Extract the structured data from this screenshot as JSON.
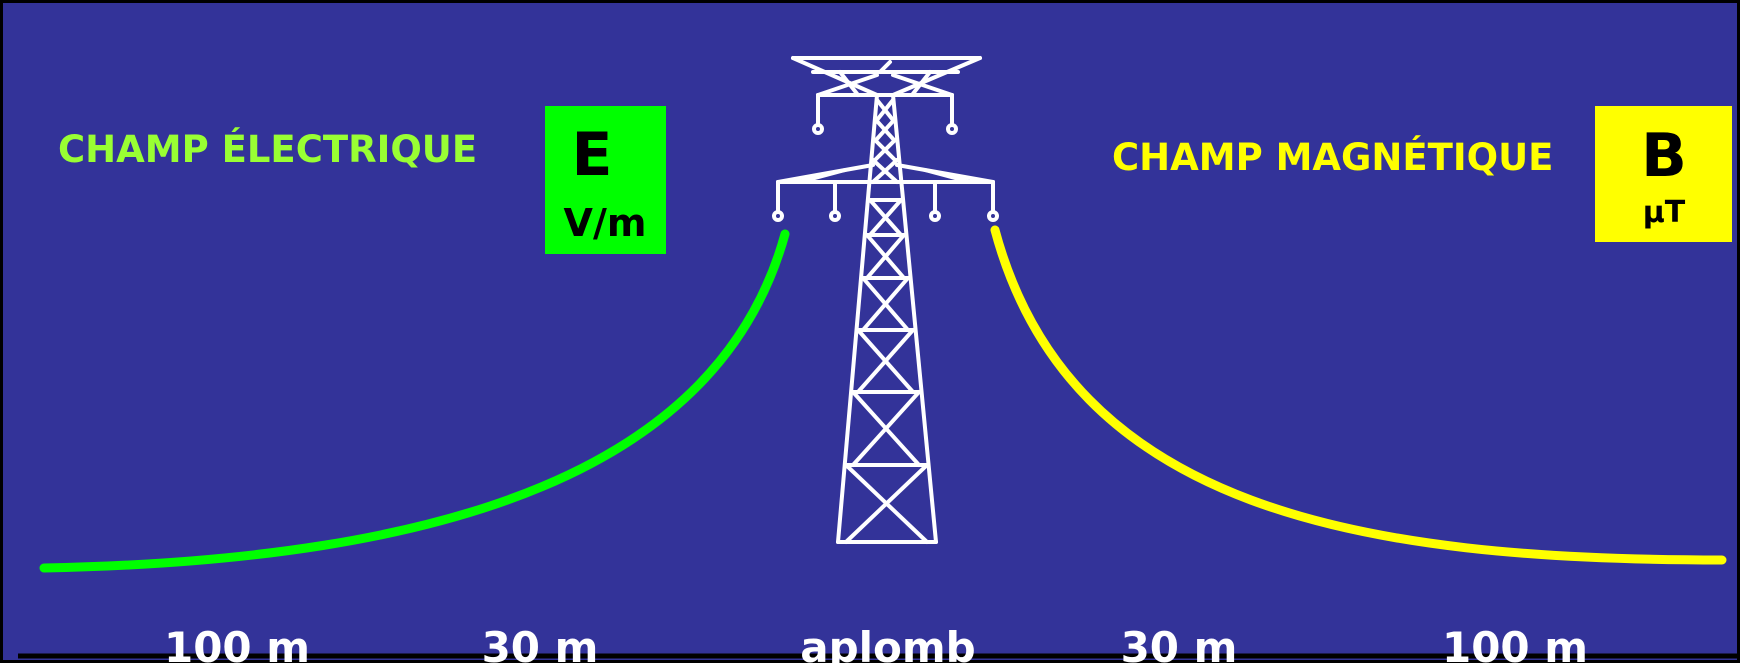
{
  "colors": {
    "background": "#333399",
    "border": "#000000",
    "electric": "#00ff00",
    "electric_text": "#99ff33",
    "magnetic": "#ffff00",
    "pylon": "#ffffff",
    "distance_text": "#ffffff"
  },
  "electric": {
    "title": "CHAMP ÉLECTRIQUE",
    "symbol": "E",
    "unit": "V/m"
  },
  "magnetic": {
    "title": "CHAMP MAGNÉTIQUE",
    "symbol": "B",
    "unit": "µT"
  },
  "distances": [
    "100 m",
    "30 m",
    "aplomb",
    "30 m",
    "100 m"
  ],
  "pylon_icon": "electricity-pylon-icon"
}
